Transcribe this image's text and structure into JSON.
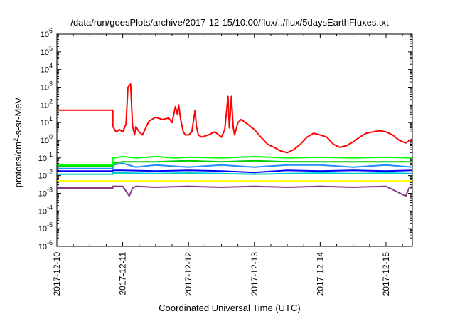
{
  "chart_data": {
    "type": "line",
    "title": "/data/run/goesPlots/archive/2017-12-15/10:00/flux/../flux/5daysEarthFluxes.txt",
    "xlabel": "Coordinated Universal Time (UTC)",
    "ylabel": {
      "base": "protons/cm",
      "sup": "2",
      "rest": "-s-sr-MeV"
    },
    "yscale": "log",
    "ylim": [
      -6,
      6
    ],
    "y_ticks": [
      {
        "exp": "-6"
      },
      {
        "exp": "-5"
      },
      {
        "exp": "-4"
      },
      {
        "exp": "-3"
      },
      {
        "exp": "-2"
      },
      {
        "exp": "-1"
      },
      {
        "exp": "0"
      },
      {
        "exp": "1"
      },
      {
        "exp": "2"
      },
      {
        "exp": "3"
      },
      {
        "exp": "4"
      },
      {
        "exp": "5"
      },
      {
        "exp": "6"
      }
    ],
    "y_tick_base": "10",
    "xlim": [
      0,
      5.4
    ],
    "x_ticks": [
      {
        "label": "2017-12-10",
        "day": 0
      },
      {
        "label": "2017-12-11",
        "day": 1
      },
      {
        "label": "2017-12-12",
        "day": 2
      },
      {
        "label": "2017-12-13",
        "day": 3
      },
      {
        "label": "2017-12-14",
        "day": 4
      },
      {
        "label": "2017-12-15",
        "day": 5
      }
    ],
    "x_unit_note": "x values are days since the first tick label",
    "grid": false,
    "legend": "none",
    "series": [
      {
        "color": "#ff0000",
        "x": [
          0,
          0.85,
          0.85,
          0.9,
          0.95,
          1.0,
          1.05,
          1.08,
          1.12,
          1.15,
          1.18,
          1.2,
          1.25,
          1.3,
          1.35,
          1.4,
          1.5,
          1.6,
          1.7,
          1.75,
          1.8,
          1.83,
          1.85,
          1.88,
          1.92,
          1.95,
          2.0,
          2.05,
          2.1,
          2.12,
          2.15,
          2.2,
          2.3,
          2.4,
          2.5,
          2.55,
          2.6,
          2.62,
          2.65,
          2.68,
          2.7,
          2.75,
          2.8,
          2.9,
          3.0,
          3.1,
          3.2,
          3.3,
          3.4,
          3.5,
          3.6,
          3.7,
          3.8,
          3.9,
          4.0,
          4.1,
          4.2,
          4.3,
          4.4,
          4.5,
          4.6,
          4.7,
          4.8,
          4.9,
          5.0,
          5.1,
          5.2,
          5.3,
          5.4
        ],
        "y": [
          50,
          50,
          6,
          3,
          4,
          3,
          8,
          1000,
          1500,
          6,
          2,
          6,
          3,
          2,
          5,
          12,
          20,
          15,
          18,
          10,
          80,
          30,
          100,
          15,
          3,
          2,
          2,
          3,
          50,
          6,
          2,
          1.5,
          2,
          3,
          1.5,
          4,
          300,
          5,
          300,
          5,
          2,
          10,
          15,
          8,
          4,
          1.5,
          0.6,
          0.4,
          0.25,
          0.2,
          0.3,
          0.6,
          1.5,
          2.5,
          2,
          1.5,
          0.6,
          0.4,
          0.5,
          0.8,
          1.5,
          2.5,
          3,
          3.5,
          3,
          2,
          1,
          0.7,
          1.2
        ]
      },
      {
        "color": "#00ff00",
        "x": [
          0,
          0.85,
          0.85,
          1.0,
          1.2,
          1.5,
          1.8,
          2.0,
          2.5,
          3.0,
          3.5,
          4.0,
          4.5,
          5.0,
          5.4
        ],
        "y": [
          0.04,
          0.04,
          0.1,
          0.12,
          0.1,
          0.12,
          0.1,
          0.11,
          0.1,
          0.12,
          0.1,
          0.11,
          0.1,
          0.11,
          0.1
        ]
      },
      {
        "color": "#00cc00",
        "x": [
          0,
          0.85,
          0.85,
          1.0,
          1.5,
          2.0,
          2.5,
          3.0,
          3.5,
          4.0,
          4.5,
          5.0,
          5.4
        ],
        "y": [
          0.035,
          0.035,
          0.05,
          0.06,
          0.06,
          0.07,
          0.06,
          0.07,
          0.06,
          0.06,
          0.06,
          0.06,
          0.06
        ]
      },
      {
        "color": "#1e90ff",
        "x": [
          0,
          0.85,
          0.85,
          1.0,
          1.2,
          1.5,
          2.0,
          2.5,
          3.0,
          3.5,
          4.0,
          4.5,
          5.0,
          5.4
        ],
        "y": [
          0.025,
          0.025,
          0.04,
          0.05,
          0.03,
          0.04,
          0.03,
          0.04,
          0.03,
          0.04,
          0.04,
          0.03,
          0.04,
          0.03
        ]
      },
      {
        "color": "#0000ff",
        "x": [
          0,
          0.85,
          0.85,
          1.0,
          1.5,
          2.0,
          2.5,
          3.0,
          3.5,
          4.0,
          4.5,
          5.0,
          5.4
        ],
        "y": [
          0.018,
          0.018,
          0.02,
          0.02,
          0.018,
          0.02,
          0.018,
          0.015,
          0.02,
          0.018,
          0.02,
          0.018,
          0.02
        ]
      },
      {
        "color": "#00cccc",
        "x": [
          0,
          0.85,
          0.85,
          1.0,
          1.5,
          2.0,
          2.5,
          3.0,
          3.5,
          4.0,
          4.5,
          5.0,
          5.4
        ],
        "y": [
          0.012,
          0.012,
          0.014,
          0.014,
          0.013,
          0.014,
          0.013,
          0.012,
          0.013,
          0.014,
          0.013,
          0.014,
          0.013
        ]
      },
      {
        "color": "#ffff00",
        "x": [
          0,
          5.4
        ],
        "y": [
          0.005,
          0.005
        ]
      },
      {
        "color": "#8b3a8b",
        "x": [
          0,
          0.85,
          0.85,
          1.0,
          1.1,
          1.15,
          1.2,
          1.5,
          2.0,
          2.5,
          3.0,
          3.5,
          4.0,
          4.5,
          5.0,
          5.3,
          5.35,
          5.4
        ],
        "y": [
          0.002,
          0.002,
          0.0025,
          0.0025,
          0.0007,
          0.002,
          0.0025,
          0.0022,
          0.0025,
          0.0022,
          0.0025,
          0.0022,
          0.0025,
          0.0022,
          0.0025,
          0.0007,
          0.002,
          0.0025
        ]
      }
    ]
  }
}
